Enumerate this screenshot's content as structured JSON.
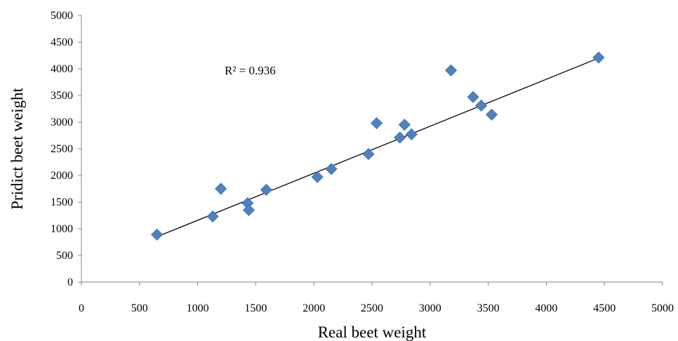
{
  "chart_data": {
    "type": "scatter",
    "title": "",
    "xlabel": "Real beet weight",
    "ylabel": "Pridict beet weight",
    "xlim": [
      0,
      5000
    ],
    "ylim": [
      0,
      5000
    ],
    "xticks": [
      0,
      500,
      1000,
      1500,
      2000,
      2500,
      3000,
      3500,
      4000,
      4500,
      5000
    ],
    "yticks": [
      0,
      500,
      1000,
      1500,
      2000,
      2500,
      3000,
      3500,
      4000,
      4500,
      5000
    ],
    "grid": false,
    "legend": "none",
    "marker": "diamond",
    "marker_color": "#4f81bd",
    "trendline_color": "#000000",
    "annotation": "R² = 0.936",
    "points": [
      {
        "x": 650,
        "y": 890
      },
      {
        "x": 1130,
        "y": 1230
      },
      {
        "x": 1200,
        "y": 1750
      },
      {
        "x": 1430,
        "y": 1480
      },
      {
        "x": 1440,
        "y": 1350
      },
      {
        "x": 1590,
        "y": 1730
      },
      {
        "x": 2030,
        "y": 1970
      },
      {
        "x": 2150,
        "y": 2120
      },
      {
        "x": 2470,
        "y": 2400
      },
      {
        "x": 2540,
        "y": 2980
      },
      {
        "x": 2740,
        "y": 2710
      },
      {
        "x": 2780,
        "y": 2950
      },
      {
        "x": 2840,
        "y": 2770
      },
      {
        "x": 3180,
        "y": 3970
      },
      {
        "x": 3370,
        "y": 3470
      },
      {
        "x": 3440,
        "y": 3310
      },
      {
        "x": 3530,
        "y": 3140
      },
      {
        "x": 4450,
        "y": 4210
      }
    ],
    "trendline": {
      "x": [
        650,
        4450
      ],
      "y": [
        850,
        4200
      ]
    }
  }
}
